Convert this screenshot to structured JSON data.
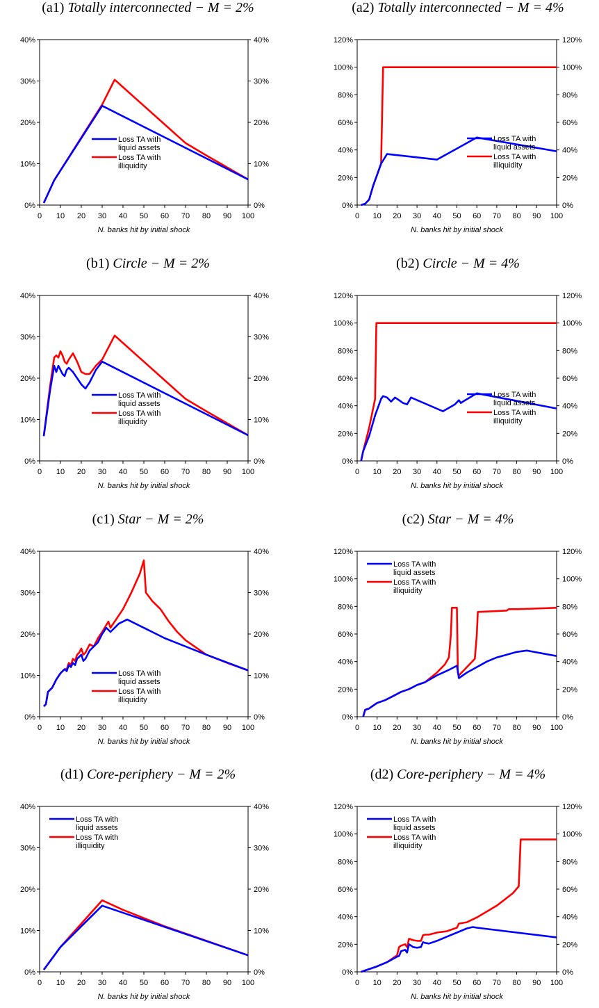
{
  "figure": {
    "xlabel": "N. banks hit by initial shock",
    "legend": [
      "Loss TA with\nliquid assets",
      "Loss TA with\nilliquidity"
    ],
    "colors": {
      "liquid": "#0000FF",
      "illiquid": "#FF0000"
    }
  },
  "chart_data": [
    {
      "id": "a1",
      "type": "line",
      "title_prefix": "(a1) ",
      "title_italic": "Totally interconnected − M = 2%",
      "xlim": [
        0,
        100
      ],
      "xticks": [
        0,
        10,
        20,
        30,
        40,
        50,
        60,
        70,
        80,
        90,
        100
      ],
      "ylim": [
        0,
        40
      ],
      "yticks": [
        0,
        10,
        20,
        30,
        40
      ],
      "ytick_labels": [
        "0%",
        "10%",
        "20%",
        "30%",
        "40%"
      ],
      "legend_pos": "center",
      "series": [
        {
          "name": "Loss TA with liquid assets",
          "color": "blue",
          "x": [
            2,
            7,
            30,
            100
          ],
          "y": [
            0.5,
            6,
            24,
            6.2
          ]
        },
        {
          "name": "Loss TA with illiquidity",
          "color": "red",
          "x": [
            2,
            7,
            30,
            36,
            40,
            50,
            60,
            70,
            80,
            100
          ],
          "y": [
            0.5,
            6,
            24.3,
            30.3,
            28.5,
            24,
            19.5,
            15,
            12,
            6.2
          ]
        }
      ]
    },
    {
      "id": "a2",
      "type": "line",
      "title_prefix": "(a2) ",
      "title_italic": "Totally interconnected − M = 4%",
      "xlim": [
        0,
        100
      ],
      "xticks": [
        0,
        10,
        20,
        30,
        40,
        50,
        60,
        70,
        80,
        90,
        100
      ],
      "ylim": [
        0,
        120
      ],
      "yticks": [
        0,
        20,
        40,
        60,
        80,
        100,
        120
      ],
      "ytick_labels": [
        "0%",
        "20%",
        "40%",
        "60%",
        "80%",
        "100%",
        "120%"
      ],
      "legend_pos": "lower-right",
      "series": [
        {
          "name": "Loss TA with liquid assets",
          "color": "blue",
          "x": [
            2,
            4,
            6,
            8,
            10,
            12,
            15,
            40,
            50,
            60,
            100
          ],
          "y": [
            0,
            1,
            4,
            14,
            22,
            30,
            37,
            33,
            41,
            49,
            39
          ]
        },
        {
          "name": "Loss TA with illiquidity",
          "color": "red",
          "x": [
            2,
            4,
            6,
            8,
            10,
            12,
            13,
            13.5,
            100
          ],
          "y": [
            0,
            1,
            4,
            14,
            22,
            30,
            100,
            100,
            100
          ]
        }
      ]
    },
    {
      "id": "b1",
      "type": "line",
      "title_prefix": "(b1) ",
      "title_italic": "Circle − M = 2%",
      "xlim": [
        0,
        100
      ],
      "xticks": [
        0,
        10,
        20,
        30,
        40,
        50,
        60,
        70,
        80,
        90,
        100
      ],
      "ylim": [
        0,
        40
      ],
      "yticks": [
        0,
        10,
        20,
        30,
        40
      ],
      "ytick_labels": [
        "0%",
        "10%",
        "20%",
        "30%",
        "40%"
      ],
      "legend_pos": "center",
      "series": [
        {
          "name": "Loss TA with liquid assets",
          "color": "blue",
          "x": [
            2,
            5,
            7,
            8,
            9,
            10,
            11,
            12,
            13,
            14,
            16,
            18,
            20,
            22,
            24,
            27,
            30,
            100
          ],
          "y": [
            6,
            17,
            23,
            21.5,
            23,
            22,
            21,
            20.5,
            22,
            22.5,
            21.5,
            20,
            18.5,
            17.5,
            19,
            22,
            24,
            6.2
          ]
        },
        {
          "name": "Loss TA with illiquidity",
          "color": "red",
          "x": [
            2,
            5,
            7,
            8,
            9,
            10,
            11,
            12,
            13,
            14,
            16,
            18,
            20,
            22,
            24,
            27,
            30,
            36,
            40,
            50,
            60,
            70,
            80,
            100
          ],
          "y": [
            6,
            18,
            25,
            25.5,
            25,
            26.5,
            25.5,
            24,
            23.5,
            24.5,
            26,
            24,
            21.5,
            21,
            21,
            23,
            24.5,
            30.3,
            28.5,
            24,
            19.5,
            15,
            12,
            6.2
          ]
        }
      ]
    },
    {
      "id": "b2",
      "type": "line",
      "title_prefix": "(b2) ",
      "title_italic": "Circle − M = 4%",
      "xlim": [
        0,
        100
      ],
      "xticks": [
        0,
        10,
        20,
        30,
        40,
        50,
        60,
        70,
        80,
        90,
        100
      ],
      "ylim": [
        0,
        120
      ],
      "yticks": [
        0,
        20,
        40,
        60,
        80,
        100,
        120
      ],
      "ytick_labels": [
        "0%",
        "20%",
        "40%",
        "60%",
        "80%",
        "100%",
        "120%"
      ],
      "legend_pos": "lower-right",
      "series": [
        {
          "name": "Loss TA with liquid assets",
          "color": "blue",
          "x": [
            2,
            3,
            6,
            9,
            12,
            13,
            15,
            17,
            19,
            21,
            23,
            25,
            27,
            43,
            49,
            51,
            52,
            53,
            60,
            100
          ],
          "y": [
            0,
            7,
            18,
            33,
            45,
            47,
            46,
            43,
            46,
            44,
            42,
            41,
            46,
            36,
            41,
            44,
            42,
            43,
            49,
            38
          ]
        },
        {
          "name": "Loss TA with illiquidity",
          "color": "red",
          "x": [
            2,
            3,
            6,
            9,
            9.6,
            10.4,
            100
          ],
          "y": [
            0,
            7,
            24,
            45,
            100,
            100,
            100
          ]
        }
      ]
    },
    {
      "id": "c1",
      "type": "line",
      "title_prefix": "(c1) ",
      "title_italic": "Star − M = 2%",
      "xlim": [
        0,
        100
      ],
      "xticks": [
        0,
        10,
        20,
        30,
        40,
        50,
        60,
        70,
        80,
        90,
        100
      ],
      "ylim": [
        0,
        40
      ],
      "yticks": [
        0,
        10,
        20,
        30,
        40
      ],
      "ytick_labels": [
        "0%",
        "10%",
        "20%",
        "30%",
        "40%"
      ],
      "legend_pos": "lower-center",
      "series": [
        {
          "name": "Loss TA with liquid assets",
          "color": "blue",
          "x": [
            2,
            3,
            4,
            6,
            8,
            10,
            12,
            13,
            14,
            15,
            16,
            17,
            18,
            19,
            20,
            21,
            22,
            24,
            26,
            28,
            30,
            32,
            34,
            36,
            38,
            42,
            50,
            60,
            70,
            80,
            100
          ],
          "y": [
            2.5,
            3,
            6,
            7,
            9,
            10.5,
            11.5,
            11,
            12.5,
            12,
            13,
            12.5,
            14,
            14.5,
            15,
            13.5,
            14,
            16,
            17,
            18,
            20,
            21.5,
            20.5,
            21.5,
            22.5,
            23.5,
            21.5,
            19,
            17,
            15,
            11.2
          ]
        },
        {
          "name": "Loss TA with illiquidity",
          "color": "red",
          "x": [
            2,
            3,
            4,
            6,
            8,
            10,
            12,
            13,
            14,
            15,
            16,
            17,
            18,
            19,
            20,
            21,
            22,
            24,
            26,
            28,
            30,
            33,
            34,
            36,
            40,
            44,
            48,
            50,
            51,
            54,
            58,
            62,
            66,
            70,
            80,
            90,
            100
          ],
          "y": [
            2.5,
            3,
            6,
            7,
            9,
            10.5,
            11.5,
            11.5,
            13,
            12.5,
            14,
            13.5,
            15,
            15.5,
            16.5,
            15,
            15.5,
            17.5,
            17,
            19,
            20.5,
            23,
            21.5,
            23,
            26,
            30,
            34.5,
            37.8,
            30,
            28,
            26,
            23,
            20.5,
            18.5,
            15,
            13,
            11.2
          ]
        }
      ]
    },
    {
      "id": "c2",
      "type": "line",
      "title_prefix": "(c2) ",
      "title_italic": "Star − M = 4%",
      "xlim": [
        0,
        100
      ],
      "xticks": [
        0,
        10,
        20,
        30,
        40,
        50,
        60,
        70,
        80,
        90,
        100
      ],
      "ylim": [
        0,
        120
      ],
      "yticks": [
        0,
        20,
        40,
        60,
        80,
        100,
        120
      ],
      "ytick_labels": [
        "0%",
        "20%",
        "40%",
        "60%",
        "80%",
        "100%",
        "120%"
      ],
      "legend_pos": "upper-left",
      "series": [
        {
          "name": "Loss TA with liquid assets",
          "color": "blue",
          "x": [
            3,
            4,
            6,
            8,
            10,
            14,
            18,
            22,
            26,
            30,
            34,
            40,
            46,
            50,
            51,
            55,
            60,
            65,
            70,
            75,
            80,
            85,
            100
          ],
          "y": [
            0,
            5,
            6,
            8,
            10,
            12,
            15,
            18,
            20,
            23,
            25,
            30,
            34,
            37,
            28,
            32,
            36,
            40,
            43,
            45,
            47,
            48,
            44
          ]
        },
        {
          "name": "Loss TA with illiquidity",
          "color": "red",
          "x": [
            3,
            4,
            6,
            8,
            10,
            14,
            18,
            22,
            26,
            30,
            34,
            40,
            44,
            46,
            47,
            47.5,
            48,
            49,
            50,
            50.5,
            51,
            55,
            59,
            60,
            60.5,
            75,
            76,
            80,
            100
          ],
          "y": [
            0,
            5,
            6,
            8,
            10,
            12,
            15,
            18,
            20,
            23,
            25,
            32,
            38,
            43,
            60,
            79,
            79,
            79,
            79,
            32,
            30,
            36,
            42,
            60,
            76,
            77,
            78,
            78,
            79
          ]
        }
      ]
    },
    {
      "id": "d1",
      "type": "line",
      "title_prefix": "(d1) ",
      "title_italic": "Core-periphery − M = 2%",
      "xlim": [
        0,
        100
      ],
      "xticks": [
        0,
        10,
        20,
        30,
        40,
        50,
        60,
        70,
        80,
        90,
        100
      ],
      "ylim": [
        0,
        40
      ],
      "yticks": [
        0,
        10,
        20,
        30,
        40
      ],
      "ytick_labels": [
        "0%",
        "10%",
        "20%",
        "30%",
        "40%"
      ],
      "legend_pos": "upper-left",
      "series": [
        {
          "name": "Loss TA with liquid assets",
          "color": "blue",
          "x": [
            2,
            10,
            30,
            100
          ],
          "y": [
            0.5,
            6,
            16,
            4
          ]
        },
        {
          "name": "Loss TA with illiquidity",
          "color": "red",
          "x": [
            2,
            10,
            30,
            40,
            50,
            60,
            100
          ],
          "y": [
            0.5,
            6,
            17.3,
            15,
            13,
            11,
            4
          ]
        }
      ]
    },
    {
      "id": "d2",
      "type": "line",
      "title_prefix": "(d2) ",
      "title_italic": "Core-periphery − M = 4%",
      "xlim": [
        0,
        100
      ],
      "xticks": [
        0,
        10,
        20,
        30,
        40,
        50,
        60,
        70,
        80,
        90,
        100
      ],
      "ylim": [
        0,
        120
      ],
      "yticks": [
        0,
        20,
        40,
        60,
        80,
        100,
        120
      ],
      "ytick_labels": [
        "0%",
        "20%",
        "40%",
        "60%",
        "80%",
        "100%",
        "120%"
      ],
      "legend_pos": "upper-left",
      "series": [
        {
          "name": "Loss TA with liquid assets",
          "color": "blue",
          "x": [
            2,
            10,
            15,
            20,
            21,
            22,
            24,
            25,
            26,
            28,
            30,
            32,
            33,
            34,
            36,
            40,
            45,
            50,
            55,
            58,
            60,
            100
          ],
          "y": [
            0,
            4,
            7,
            11,
            11.5,
            15,
            16,
            14,
            20,
            18,
            17.5,
            18,
            21.5,
            21,
            20.5,
            22.5,
            25.5,
            28.5,
            31.5,
            32.5,
            32,
            25
          ]
        },
        {
          "name": "Loss TA with illiquidity",
          "color": "red",
          "x": [
            2,
            10,
            15,
            20,
            21,
            22,
            24,
            25,
            26,
            28,
            30,
            32,
            33,
            34,
            36,
            40,
            45,
            50,
            51,
            55,
            60,
            70,
            78,
            81,
            82,
            100
          ],
          "y": [
            0,
            4,
            7,
            12,
            18,
            19,
            20,
            18,
            24,
            23,
            22.5,
            22.5,
            26.5,
            27,
            27,
            28.5,
            29.5,
            32,
            35,
            36,
            39.5,
            48,
            57,
            62,
            96,
            96
          ]
        }
      ]
    }
  ]
}
